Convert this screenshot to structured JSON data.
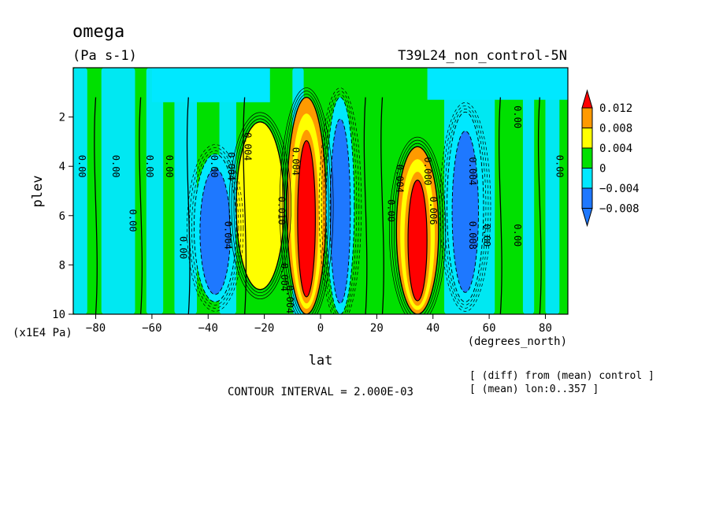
{
  "chart_data": {
    "type": "heatmap",
    "title": "omega",
    "units": "(Pa s-1)",
    "experiment": "T39L24_non_control-5N",
    "xlabel": "lat",
    "x_units": "(degrees_north)",
    "ylabel": "plev",
    "y_units": "(x1E4 Pa)",
    "xlim": [
      -88,
      88
    ],
    "ylim": [
      10,
      0
    ],
    "x_ticks": [
      -80,
      -60,
      -40,
      -20,
      0,
      20,
      40,
      60,
      80
    ],
    "y_ticks": [
      2,
      4,
      6,
      8,
      10
    ],
    "contour_interval_text": "CONTOUR INTERVAL = 2.000E-03",
    "notes": [
      "[ (diff) from (mean) control ]",
      "[ (mean) lon:0..357 ]"
    ],
    "colorbar": {
      "labels": [
        "0.012",
        "0.008",
        "0.004",
        "0",
        "−0.004",
        "−0.008"
      ],
      "colors": [
        "#ff0000",
        "#ff9a00",
        "#ffff00",
        "#00e000",
        "#00e8ff",
        "#1e78ff",
        "#1e78ff"
      ]
    },
    "features": [
      {
        "kind": "positive",
        "x": [
          -12,
          2
        ],
        "p": [
          1.2,
          10
        ],
        "value": 0.012
      },
      {
        "kind": "negative",
        "x": [
          2,
          12
        ],
        "p": [
          1.2,
          10
        ],
        "value": -0.008
      },
      {
        "kind": "positive",
        "x": [
          27,
          42
        ],
        "p": [
          3.2,
          10
        ],
        "value": 0.012
      },
      {
        "kind": "negative",
        "x": [
          45,
          58
        ],
        "p": [
          1.8,
          9.5
        ],
        "value": -0.008
      },
      {
        "kind": "positive",
        "x": [
          -30,
          -13
        ],
        "p": [
          2.2,
          9
        ],
        "value": 0.004
      },
      {
        "kind": "negative",
        "x": [
          -45,
          -30
        ],
        "p": [
          3.5,
          9.5
        ],
        "value": -0.008
      }
    ],
    "contour_labels": [
      {
        "text": "0.00",
        "x": -86,
        "p": 4.0
      },
      {
        "text": "0.00",
        "x": -74,
        "p": 4.0
      },
      {
        "text": "0.00",
        "x": -62,
        "p": 4.0
      },
      {
        "text": "0.00",
        "x": -55,
        "p": 4.0
      },
      {
        "text": "0.00",
        "x": -39,
        "p": 4.0
      },
      {
        "text": "0.004",
        "x": -33,
        "p": 4.0
      },
      {
        "text": "0.00",
        "x": -68,
        "p": 6.2
      },
      {
        "text": "0.00",
        "x": -50,
        "p": 7.3
      },
      {
        "text": "0.004",
        "x": -34,
        "p": 6.8
      },
      {
        "text": "0.004",
        "x": -27,
        "p": 3.2
      },
      {
        "text": "0.010",
        "x": -15,
        "p": 5.8
      },
      {
        "text": "0.004",
        "x": -14,
        "p": 8.5
      },
      {
        "text": "0.004",
        "x": -12,
        "p": 9.4
      },
      {
        "text": "0.004",
        "x": -10,
        "p": 3.8
      },
      {
        "text": "0.00",
        "x": 24,
        "p": 5.8
      },
      {
        "text": "0.004",
        "x": 27,
        "p": 4.5
      },
      {
        "text": "0.000",
        "x": 37,
        "p": 4.2
      },
      {
        "text": "0.006",
        "x": 39,
        "p": 5.8
      },
      {
        "text": "0.004",
        "x": 53,
        "p": 4.2
      },
      {
        "text": "0.008",
        "x": 53,
        "p": 6.8
      },
      {
        "text": "0.00",
        "x": 58,
        "p": 6.8
      },
      {
        "text": "0.00",
        "x": 69,
        "p": 6.8
      },
      {
        "text": "0.00",
        "x": 69,
        "p": 2.0
      },
      {
        "text": "0.00",
        "x": 84,
        "p": 4.0
      }
    ]
  }
}
